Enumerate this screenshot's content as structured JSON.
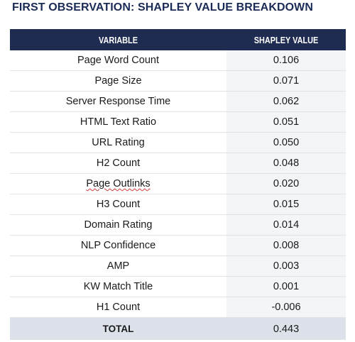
{
  "title": "FIRST OBSERVATION: SHAPLEY VALUE BREAKDOWN",
  "table": {
    "headers": [
      "VARIABLE",
      "SHAPLEY VALUE"
    ],
    "rows": [
      {
        "variable": "Page Word Count",
        "value": "0.106"
      },
      {
        "variable": "Page Size",
        "value": "0.071"
      },
      {
        "variable": "Server Response Time",
        "value": "0.062"
      },
      {
        "variable": "HTML Text Ratio",
        "value": "0.051"
      },
      {
        "variable": "URL Rating",
        "value": "0.050"
      },
      {
        "variable": "H2 Count",
        "value": "0.048"
      },
      {
        "variable": "Page Outlinks",
        "value": "0.020"
      },
      {
        "variable": "H3 Count",
        "value": "0.015"
      },
      {
        "variable": "Domain Rating",
        "value": "0.014"
      },
      {
        "variable": "NLP Confidence",
        "value": "0.008"
      },
      {
        "variable": "AMP",
        "value": "0.003"
      },
      {
        "variable": "KW Match Title",
        "value": "0.001"
      },
      {
        "variable": "H1 Count",
        "value": "-0.006"
      }
    ],
    "total": {
      "label": "TOTAL",
      "value": "0.443"
    }
  },
  "colors": {
    "header_bg": "#1f2c52",
    "title_text": "#1b2b57",
    "value_column_bg": "#f3f5f8",
    "total_bg": "#dde1ea"
  }
}
